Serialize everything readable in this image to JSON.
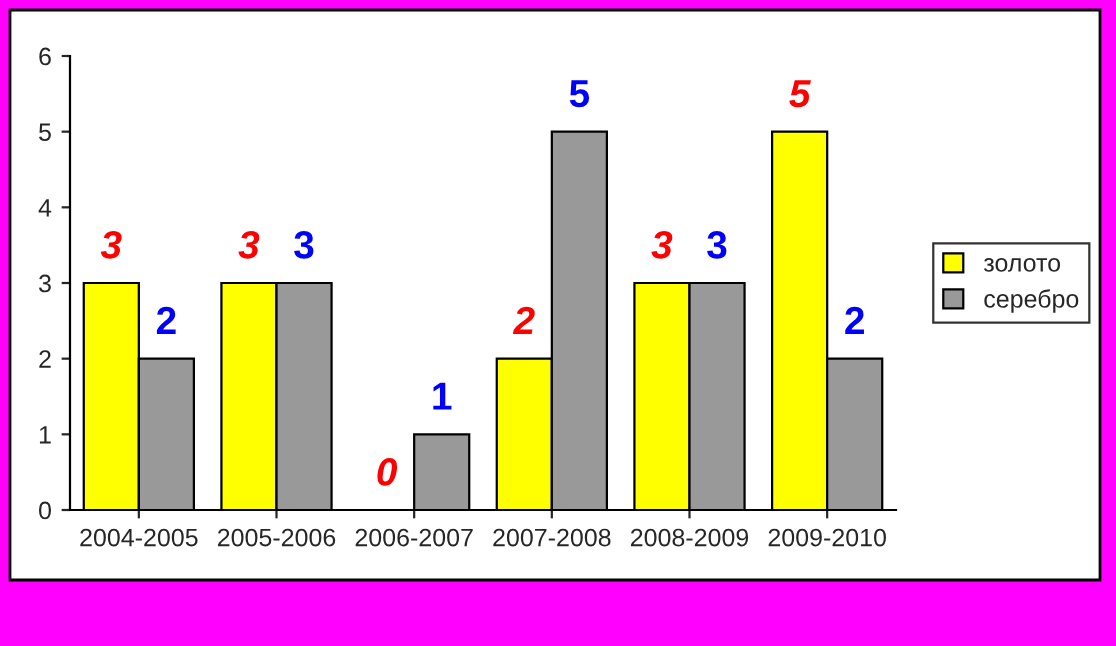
{
  "chart_data": {
    "type": "bar",
    "categories": [
      "2004-2005",
      "2005-2006",
      "2006-2007",
      "2007-2008",
      "2008-2009",
      "2009-2010"
    ],
    "series": [
      {
        "name": "золото",
        "color": "#ffff00",
        "values": [
          3,
          3,
          0,
          2,
          3,
          5
        ]
      },
      {
        "name": "серебро",
        "color": "#999999",
        "values": [
          2,
          3,
          1,
          5,
          3,
          2
        ]
      }
    ],
    "ylim": [
      0,
      6
    ],
    "yticks": [
      0,
      1,
      2,
      3,
      4,
      5,
      6
    ],
    "grid": false,
    "legend": "right",
    "data_labels": true
  }
}
